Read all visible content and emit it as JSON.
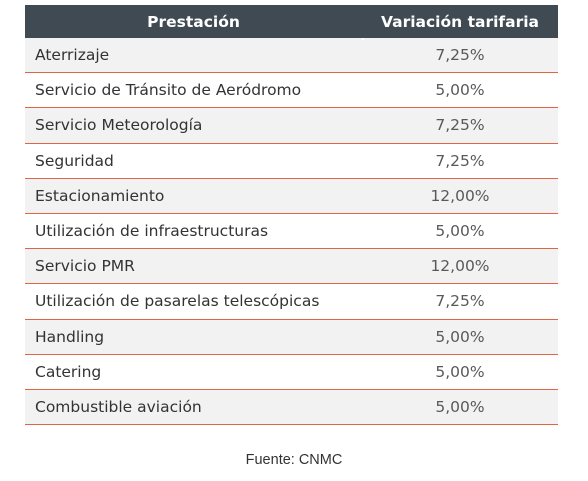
{
  "table": {
    "headers": {
      "prestacion": "Prestación",
      "variacion": "Variación tarifaria"
    },
    "rows": [
      {
        "name": "Aterrizaje",
        "value": "7,25%"
      },
      {
        "name": "Servicio de Tránsito de Aeródromo",
        "value": "5,00%"
      },
      {
        "name": "Servicio Meteorología",
        "value": "7,25%"
      },
      {
        "name": "Seguridad",
        "value": "7,25%"
      },
      {
        "name": "Estacionamiento",
        "value": "12,00%"
      },
      {
        "name": "Utilización de infraestructuras",
        "value": "5,00%"
      },
      {
        "name": "Servicio PMR",
        "value": "12,00%"
      },
      {
        "name": "Utilización de pasarelas telescópicas",
        "value": "7,25%"
      },
      {
        "name": "Handling",
        "value": "5,00%"
      },
      {
        "name": "Catering",
        "value": "5,00%"
      },
      {
        "name": "Combustible aviación",
        "value": "5,00%"
      }
    ]
  },
  "source": "Fuente: CNMC",
  "colors": {
    "header_bg": "#3f4a53",
    "row_border": "#e06548",
    "alt_row_bg": "#f2f2f2"
  }
}
